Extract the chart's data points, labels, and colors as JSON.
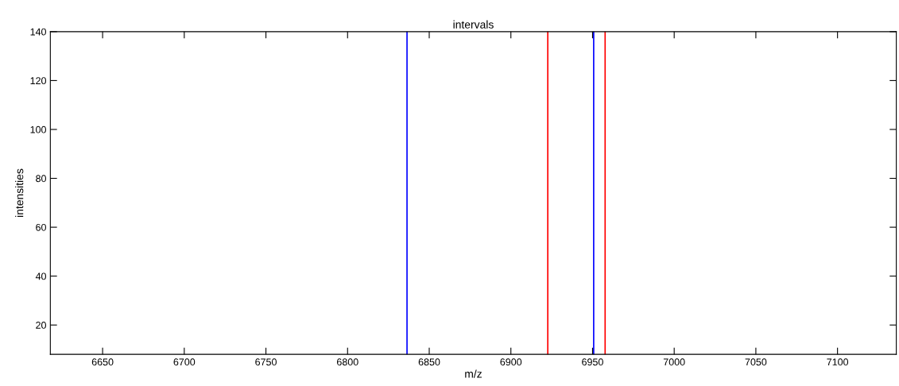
{
  "chart_data": {
    "type": "line",
    "title": "intervals",
    "xlabel": "m/z",
    "ylabel": "intensities",
    "xlim": [
      6618,
      7136
    ],
    "xticks": [
      6650,
      6700,
      6750,
      6800,
      6850,
      6900,
      6950,
      7000,
      7050,
      7100
    ],
    "ylim": [
      8,
      140
    ],
    "yticks": [
      20,
      40,
      60,
      80,
      100,
      120,
      140
    ],
    "grid": false,
    "series": [
      {
        "color": "#0000ff",
        "x": [
          6836.4,
          6836.4
        ],
        "values": [
          8,
          140
        ]
      },
      {
        "color": "#ff0000",
        "x": [
          6922.6,
          6922.6
        ],
        "values": [
          8,
          140
        ]
      },
      {
        "color": "#0000ff",
        "x": [
          6950.7,
          6950.7
        ],
        "values": [
          8,
          140
        ]
      },
      {
        "color": "#ff0000",
        "x": [
          6957.7,
          6957.7
        ],
        "values": [
          8,
          140
        ]
      }
    ]
  }
}
